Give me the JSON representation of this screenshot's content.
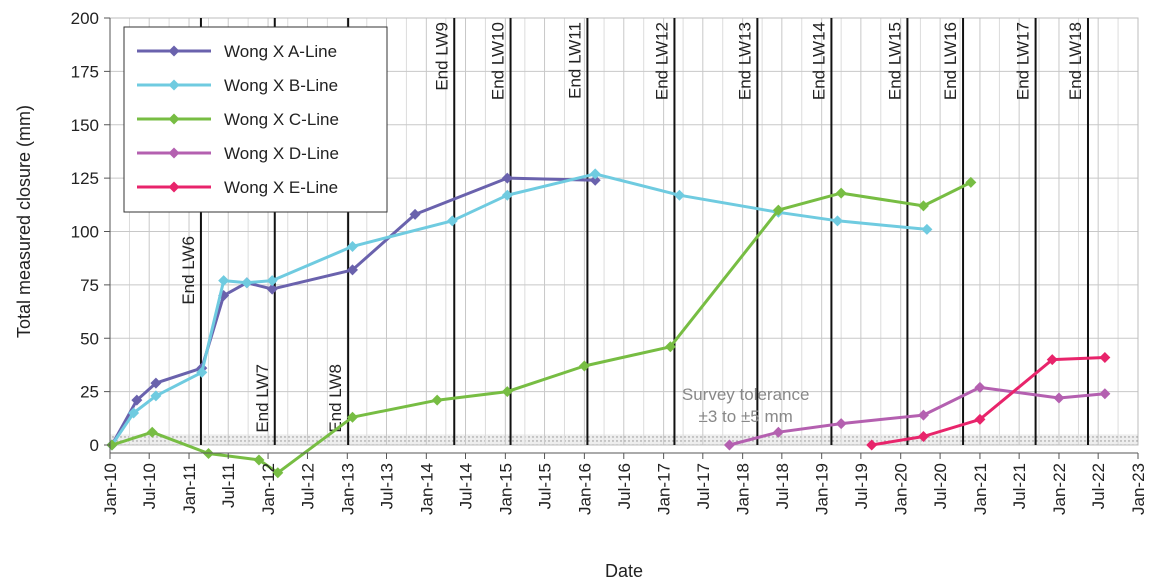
{
  "chart_data": {
    "type": "line",
    "xlabel": "Date",
    "ylabel": "Total measured closure (mm)",
    "ylim": [
      0,
      200
    ],
    "yticks": [
      0,
      25,
      50,
      75,
      100,
      125,
      150,
      175,
      200
    ],
    "xlim": [
      "2010-01-01",
      "2023-01-01"
    ],
    "xticks": [
      {
        "date": "2010-01-01",
        "label": "Jan-10"
      },
      {
        "date": "2010-07-01",
        "label": "Jul-10"
      },
      {
        "date": "2011-01-01",
        "label": "Jan-11"
      },
      {
        "date": "2011-07-01",
        "label": "Jul-11"
      },
      {
        "date": "2012-01-01",
        "label": "Jan-12"
      },
      {
        "date": "2012-07-01",
        "label": "Jul-12"
      },
      {
        "date": "2013-01-01",
        "label": "Jan-13"
      },
      {
        "date": "2013-07-01",
        "label": "Jul-13"
      },
      {
        "date": "2014-01-01",
        "label": "Jan-14"
      },
      {
        "date": "2014-07-01",
        "label": "Jul-14"
      },
      {
        "date": "2015-01-01",
        "label": "Jan-15"
      },
      {
        "date": "2015-07-01",
        "label": "Jul-15"
      },
      {
        "date": "2016-01-01",
        "label": "Jan-16"
      },
      {
        "date": "2016-07-01",
        "label": "Jul-16"
      },
      {
        "date": "2017-01-01",
        "label": "Jan-17"
      },
      {
        "date": "2017-07-01",
        "label": "Jul-17"
      },
      {
        "date": "2018-01-01",
        "label": "Jan-18"
      },
      {
        "date": "2018-07-01",
        "label": "Jul-18"
      },
      {
        "date": "2019-01-01",
        "label": "Jan-19"
      },
      {
        "date": "2019-07-01",
        "label": "Jul-19"
      },
      {
        "date": "2020-01-01",
        "label": "Jan-20"
      },
      {
        "date": "2020-07-01",
        "label": "Jul-20"
      },
      {
        "date": "2021-01-01",
        "label": "Jan-21"
      },
      {
        "date": "2021-07-01",
        "label": "Jul-21"
      },
      {
        "date": "2022-01-01",
        "label": "Jan-22"
      },
      {
        "date": "2022-07-01",
        "label": "Jul-22"
      },
      {
        "date": "2023-01-01",
        "label": "Jan-23"
      }
    ],
    "grid": true,
    "legend_position": "top-left",
    "series": [
      {
        "name": "Wong X A-Line",
        "color": "#6a62ad",
        "points": [
          [
            "2010-01-10",
            0
          ],
          [
            "2010-05-05",
            21
          ],
          [
            "2010-08-01",
            29
          ],
          [
            "2011-03-01",
            36
          ],
          [
            "2011-06-10",
            70
          ],
          [
            "2011-09-25",
            76
          ],
          [
            "2012-01-20",
            73
          ],
          [
            "2013-01-25",
            82
          ],
          [
            "2013-11-10",
            108
          ],
          [
            "2015-01-10",
            125
          ],
          [
            "2016-02-20",
            124
          ]
        ]
      },
      {
        "name": "Wong X B-Line",
        "color": "#6fcbe0",
        "points": [
          [
            "2010-01-10",
            0
          ],
          [
            "2010-04-20",
            15
          ],
          [
            "2010-08-01",
            23
          ],
          [
            "2011-03-01",
            34
          ],
          [
            "2011-06-10",
            77
          ],
          [
            "2011-09-25",
            76
          ],
          [
            "2012-01-20",
            77
          ],
          [
            "2013-01-25",
            93
          ],
          [
            "2014-05-01",
            105
          ],
          [
            "2015-01-10",
            117
          ],
          [
            "2016-02-20",
            127
          ],
          [
            "2017-03-15",
            117
          ],
          [
            "2018-06-15",
            109
          ],
          [
            "2019-03-15",
            105
          ],
          [
            "2020-05-01",
            101
          ]
        ]
      },
      {
        "name": "Wong X C-Line",
        "color": "#77bd43",
        "points": [
          [
            "2010-01-10",
            0
          ],
          [
            "2010-07-15",
            6
          ],
          [
            "2011-04-01",
            -4
          ],
          [
            "2011-11-20",
            -7
          ],
          [
            "2012-02-15",
            -13
          ],
          [
            "2013-01-25",
            13
          ],
          [
            "2014-02-20",
            21
          ],
          [
            "2015-01-10",
            25
          ],
          [
            "2016-01-01",
            37
          ],
          [
            "2017-02-01",
            46
          ],
          [
            "2018-06-15",
            110
          ],
          [
            "2019-04-01",
            118
          ],
          [
            "2020-04-15",
            112
          ],
          [
            "2020-11-20",
            123
          ]
        ]
      },
      {
        "name": "Wong X D-Line",
        "color": "#b460b0",
        "points": [
          [
            "2017-11-01",
            0
          ],
          [
            "2018-06-15",
            6
          ],
          [
            "2019-04-01",
            10
          ],
          [
            "2020-04-15",
            14
          ],
          [
            "2021-01-01",
            27
          ],
          [
            "2022-01-01",
            22
          ],
          [
            "2022-08-01",
            24
          ]
        ]
      },
      {
        "name": "Wong X E-Line",
        "color": "#e8246b",
        "points": [
          [
            "2019-08-20",
            0
          ],
          [
            "2020-04-15",
            4
          ],
          [
            "2021-01-01",
            12
          ],
          [
            "2021-12-01",
            40
          ],
          [
            "2022-08-01",
            41
          ]
        ]
      }
    ],
    "events": [
      {
        "date": "2011-02-25",
        "label": "End LW6"
      },
      {
        "date": "2012-02-01",
        "label": "End LW7"
      },
      {
        "date": "2013-01-05",
        "label": "End LW8"
      },
      {
        "date": "2014-05-10",
        "label": "End LW9"
      },
      {
        "date": "2015-01-25",
        "label": "End LW10"
      },
      {
        "date": "2016-01-15",
        "label": "End LW11"
      },
      {
        "date": "2017-02-20",
        "label": "End LW12"
      },
      {
        "date": "2018-03-10",
        "label": "End LW13"
      },
      {
        "date": "2019-02-15",
        "label": "End LW14"
      },
      {
        "date": "2020-02-01",
        "label": "End LW15"
      },
      {
        "date": "2020-10-15",
        "label": "End LW16"
      },
      {
        "date": "2021-09-15",
        "label": "End LW17"
      },
      {
        "date": "2022-05-15",
        "label": "End LW18"
      }
    ],
    "tolerance_band": {
      "from": 0,
      "to": 5
    },
    "annotations": [
      "Survey tolerance",
      "±3 to ±5 mm"
    ]
  }
}
